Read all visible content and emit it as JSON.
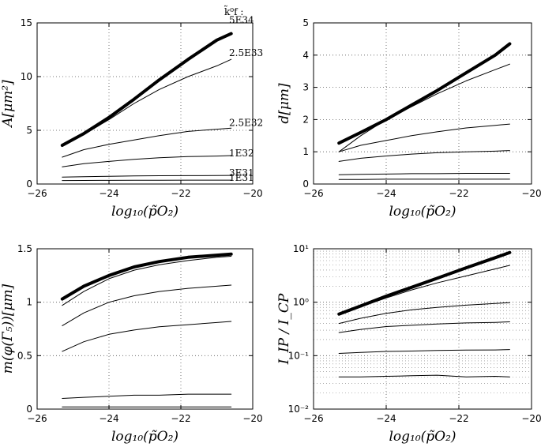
{
  "chart_data": [
    {
      "type": "line",
      "name": "area",
      "ylabel": "A[μm²]",
      "xlabel": "log₁₀(p̃O₂)",
      "xlim": [
        -26,
        -20
      ],
      "ylim": [
        0,
        15
      ],
      "yscale": "linear",
      "xticks": [
        -26,
        -24,
        -22,
        -20
      ],
      "xtick_labels": [
        "−26",
        "−24",
        "−22",
        "−20"
      ],
      "yticks": [
        0,
        5,
        10,
        15
      ],
      "ytick_labels": [
        "0",
        "5",
        "10",
        "15"
      ],
      "grid": true,
      "legend_title": "k̃⁰f :",
      "x": [
        -25.3,
        -24.7,
        -24,
        -23.3,
        -22.6,
        -21.8,
        -21,
        -20.6
      ],
      "series": [
        {
          "name": "5E34",
          "label": "5E34",
          "width": 4,
          "values": [
            3.6,
            4.7,
            6.2,
            7.9,
            9.7,
            11.6,
            13.4,
            14.0
          ]
        },
        {
          "name": "2.5E33",
          "label": "2.5E33",
          "width": 1,
          "values": [
            3.6,
            4.6,
            6.0,
            7.5,
            8.8,
            10.0,
            11.0,
            11.6
          ]
        },
        {
          "name": "2.5E32",
          "label": "2.5E32",
          "width": 1,
          "values": [
            2.5,
            3.2,
            3.7,
            4.1,
            4.5,
            4.9,
            5.1,
            5.2
          ]
        },
        {
          "name": "1E32",
          "label": "1E32",
          "width": 1,
          "values": [
            1.6,
            1.9,
            2.1,
            2.3,
            2.45,
            2.55,
            2.6,
            2.65
          ]
        },
        {
          "name": "3E31",
          "label": "3E31",
          "width": 1,
          "values": [
            0.65,
            0.68,
            0.72,
            0.75,
            0.77,
            0.78,
            0.79,
            0.8
          ]
        },
        {
          "name": "1E31",
          "label": "1E31",
          "width": 1,
          "values": [
            0.32,
            0.33,
            0.34,
            0.35,
            0.35,
            0.36,
            0.36,
            0.36
          ]
        }
      ]
    },
    {
      "type": "line",
      "name": "depth",
      "ylabel": "d[μm]",
      "xlabel": "log₁₀(p̃O₂)",
      "xlim": [
        -26,
        -20
      ],
      "ylim": [
        0,
        5
      ],
      "yscale": "linear",
      "xticks": [
        -26,
        -24,
        -22,
        -20
      ],
      "xtick_labels": [
        "−26",
        "−24",
        "−22",
        "−20"
      ],
      "yticks": [
        0,
        1,
        2,
        3,
        4,
        5
      ],
      "ytick_labels": [
        "0",
        "1",
        "2",
        "3",
        "4",
        "5"
      ],
      "grid": true,
      "x": [
        -25.3,
        -24.7,
        -24,
        -23.3,
        -22.6,
        -21.8,
        -21,
        -20.6
      ],
      "series": [
        {
          "name": "5E34",
          "width": 4,
          "values": [
            1.27,
            1.6,
            2.0,
            2.45,
            2.9,
            3.45,
            4.0,
            4.35
          ]
        },
        {
          "name": "2.5E33",
          "width": 1,
          "values": [
            1.0,
            1.5,
            2.0,
            2.4,
            2.8,
            3.2,
            3.55,
            3.72
          ]
        },
        {
          "name": "2.5E32",
          "width": 1,
          "values": [
            1.0,
            1.2,
            1.35,
            1.5,
            1.62,
            1.74,
            1.82,
            1.86
          ]
        },
        {
          "name": "1E32",
          "width": 1,
          "values": [
            0.7,
            0.8,
            0.87,
            0.93,
            0.97,
            1.0,
            1.02,
            1.04
          ]
        },
        {
          "name": "3E31",
          "width": 1,
          "values": [
            0.29,
            0.3,
            0.31,
            0.32,
            0.32,
            0.33,
            0.33,
            0.33
          ]
        },
        {
          "name": "1E31",
          "width": 1,
          "values": [
            0.14,
            0.14,
            0.15,
            0.15,
            0.15,
            0.15,
            0.15,
            0.15
          ]
        }
      ]
    },
    {
      "type": "line",
      "name": "mean-phi",
      "ylabel": "m(φ(Γ₅))[μm]",
      "xlabel": "log₁₀(p̃O₂)",
      "xlim": [
        -26,
        -20
      ],
      "ylim": [
        0,
        1.5
      ],
      "yscale": "linear",
      "xticks": [
        -26,
        -24,
        -22,
        -20
      ],
      "xtick_labels": [
        "−26",
        "−24",
        "−22",
        "−20"
      ],
      "yticks": [
        0,
        0.5,
        1,
        1.5
      ],
      "ytick_labels": [
        "0",
        "0.5",
        "1",
        "1.5"
      ],
      "grid": true,
      "x": [
        -25.3,
        -24.7,
        -24,
        -23.3,
        -22.6,
        -21.8,
        -21,
        -20.6
      ],
      "series": [
        {
          "name": "5E34",
          "width": 4,
          "values": [
            1.03,
            1.15,
            1.25,
            1.33,
            1.38,
            1.42,
            1.44,
            1.45
          ]
        },
        {
          "name": "2.5E33",
          "width": 1,
          "values": [
            0.97,
            1.1,
            1.22,
            1.3,
            1.35,
            1.39,
            1.42,
            1.43
          ]
        },
        {
          "name": "2.5E32",
          "width": 1,
          "values": [
            0.78,
            0.9,
            1.0,
            1.06,
            1.1,
            1.13,
            1.15,
            1.16
          ]
        },
        {
          "name": "1E32",
          "width": 1,
          "values": [
            0.54,
            0.63,
            0.7,
            0.74,
            0.77,
            0.79,
            0.81,
            0.82
          ]
        },
        {
          "name": "3E31",
          "width": 1,
          "values": [
            0.1,
            0.11,
            0.12,
            0.13,
            0.13,
            0.14,
            0.14,
            0.14
          ]
        },
        {
          "name": "1E31",
          "width": 1,
          "values": [
            0.02,
            0.02,
            0.02,
            0.02,
            0.02,
            0.02,
            0.02,
            0.02
          ]
        }
      ]
    },
    {
      "type": "line",
      "name": "ip-cp-ratio",
      "ylabel": "I_IP / I_CP",
      "xlabel": "log₁₀(p̃O₂)",
      "xlim": [
        -26,
        -20
      ],
      "ylim": [
        0.01,
        10
      ],
      "yscale": "log",
      "xticks": [
        -26,
        -24,
        -22,
        -20
      ],
      "xtick_labels": [
        "−26",
        "−24",
        "−22",
        "−20"
      ],
      "yticks": [
        0.01,
        0.1,
        1,
        10
      ],
      "ytick_labels": [
        "10⁻²",
        "10⁻¹",
        "10⁰",
        "10¹"
      ],
      "grid": true,
      "x": [
        -25.3,
        -24.7,
        -24,
        -23.3,
        -22.6,
        -21.8,
        -21,
        -20.6
      ],
      "series": [
        {
          "name": "5E34",
          "width": 4,
          "values": [
            0.6,
            0.85,
            1.3,
            1.9,
            2.8,
            4.4,
            6.8,
            8.5
          ]
        },
        {
          "name": "2.5E33",
          "width": 1,
          "values": [
            0.6,
            0.82,
            1.2,
            1.7,
            2.3,
            3.1,
            4.2,
            4.9
          ]
        },
        {
          "name": "2.5E32",
          "width": 1,
          "values": [
            0.4,
            0.5,
            0.62,
            0.72,
            0.8,
            0.88,
            0.95,
            0.98
          ]
        },
        {
          "name": "1E32",
          "width": 1,
          "values": [
            0.27,
            0.31,
            0.35,
            0.37,
            0.39,
            0.41,
            0.42,
            0.43
          ]
        },
        {
          "name": "3E31",
          "width": 1,
          "values": [
            0.11,
            0.115,
            0.12,
            0.122,
            0.125,
            0.127,
            0.128,
            0.13
          ]
        },
        {
          "name": "1E31",
          "width": 1,
          "values": [
            0.04,
            0.04,
            0.041,
            0.042,
            0.043,
            0.04,
            0.041,
            0.04
          ]
        }
      ]
    }
  ]
}
